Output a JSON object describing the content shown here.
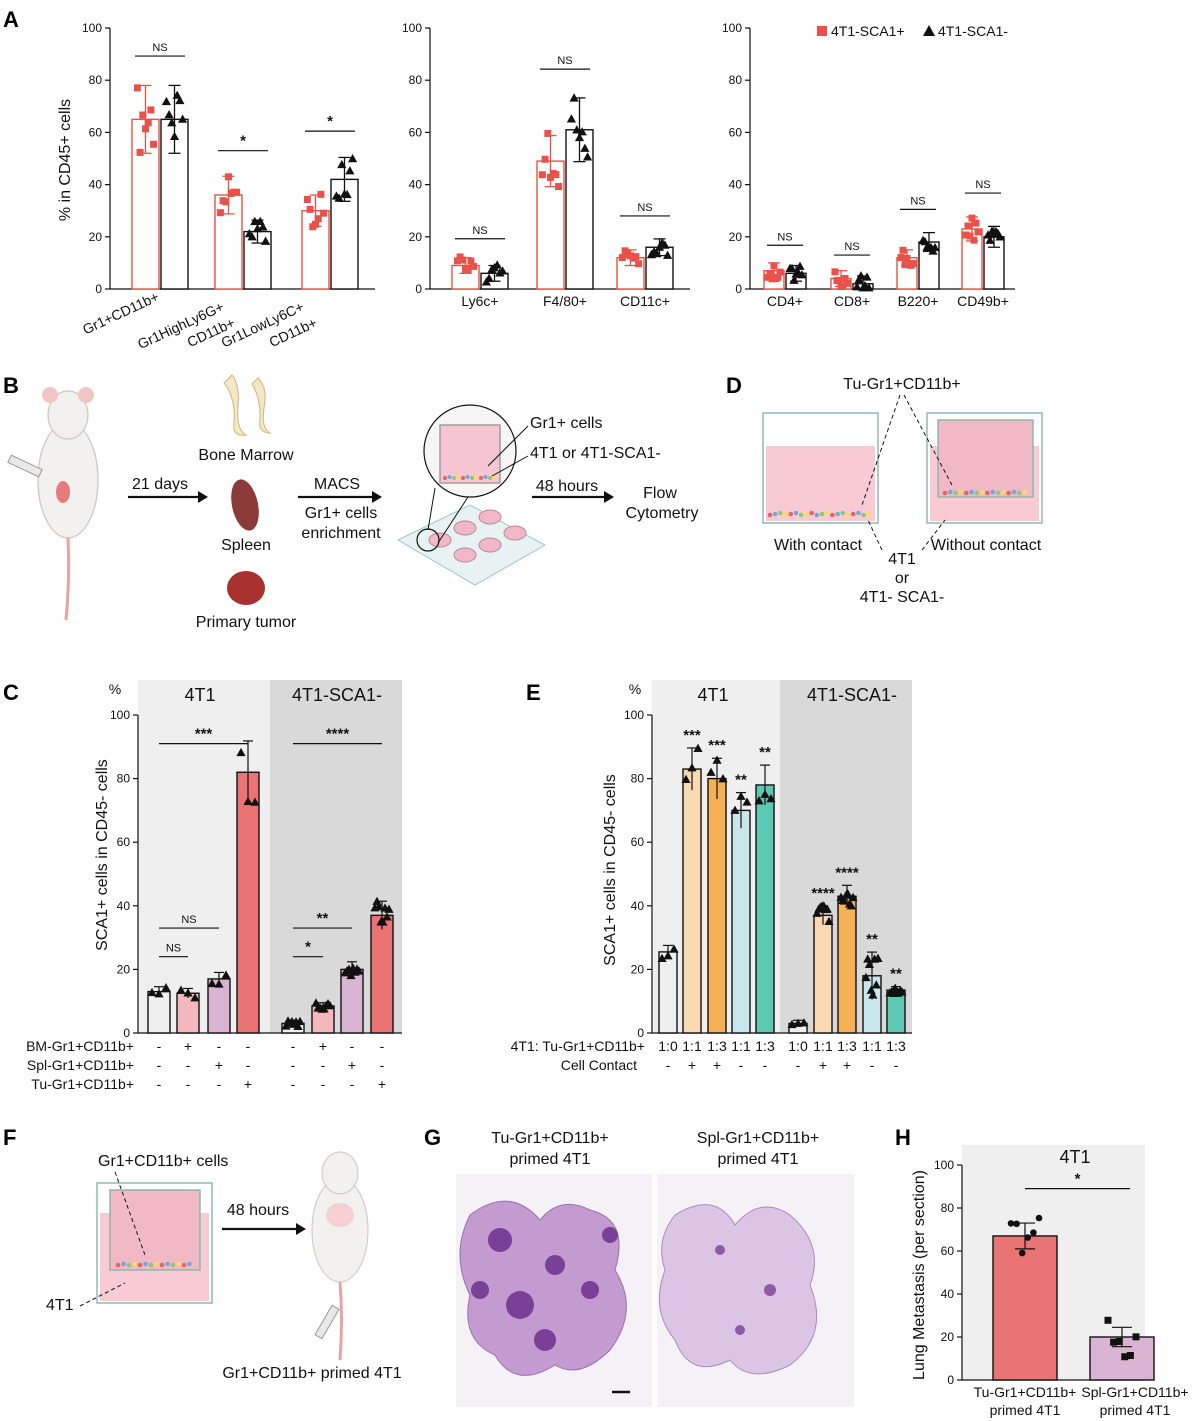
{
  "panel_labels": {
    "a": "A",
    "b": "B",
    "c": "C",
    "d": "D",
    "e": "E",
    "f": "F",
    "g": "G",
    "h": "H"
  },
  "colors": {
    "red": "#e8524a",
    "black": "#111111",
    "peach": "#f8d9b2",
    "orange": "#f4b156",
    "lightblue": "#c8e6ec",
    "teal": "#5cc8b2",
    "mauve": "#d9b5d3",
    "pink": "#f2b8be",
    "salmon": "#ea7474",
    "gray_bg": "#efefef",
    "dark_bg": "#d9d9d9"
  },
  "panelA": {
    "ylabel": "% in CD45+ cells",
    "legend": [
      "4T1-SCA1+",
      "4T1-SCA1-"
    ],
    "chart_data": [
      {
        "type": "bar",
        "ylim": [
          0,
          100
        ],
        "yticks": [
          0,
          20,
          40,
          60,
          80,
          100
        ],
        "categories": [
          "Gr1+CD11b+",
          "Gr1HighLy6G+ CD11b+",
          "Gr1LowLy6C+ CD11b+"
        ],
        "series": [
          {
            "name": "4T1-SCA1+",
            "values": [
              65,
              36,
              30
            ]
          },
          {
            "name": "4T1-SCA1-",
            "values": [
              65,
              22,
              42
            ]
          }
        ],
        "significance": [
          "NS",
          "*",
          "*"
        ]
      },
      {
        "type": "bar",
        "ylim": [
          0,
          100
        ],
        "yticks": [
          0,
          20,
          40,
          60,
          80,
          100
        ],
        "categories": [
          "Ly6c+",
          "F4/80+",
          "CD11c+"
        ],
        "series": [
          {
            "name": "4T1-SCA1+",
            "values": [
              9,
              49,
              12
            ]
          },
          {
            "name": "4T1-SCA1-",
            "values": [
              6,
              61,
              16
            ]
          }
        ],
        "significance": [
          "NS",
          "NS",
          "NS"
        ]
      },
      {
        "type": "bar",
        "ylim": [
          0,
          100
        ],
        "yticks": [
          0,
          20,
          40,
          60,
          80,
          100
        ],
        "categories": [
          "CD4+",
          "CD8+",
          "B220+",
          "CD49b+"
        ],
        "series": [
          {
            "name": "4T1-SCA1+",
            "values": [
              7,
              4,
              12,
              23
            ]
          },
          {
            "name": "4T1-SCA1-",
            "values": [
              6,
              2,
              18,
              20
            ]
          }
        ],
        "significance": [
          "NS",
          "NS",
          "NS",
          "NS"
        ]
      }
    ]
  },
  "panelB": {
    "days": "21 days",
    "bone_marrow": "Bone Marrow",
    "spleen": "Spleen",
    "primary_tumor": "Primary tumor",
    "macs": "MACS",
    "enrich1": "Gr1+ cells",
    "enrich2": "enrichment",
    "gr1_cells": "Gr1+ cells",
    "tumor_cells": "4T1 or 4T1-SCA1-",
    "hours": "48 hours",
    "flow1": "Flow",
    "flow2": "Cytometry"
  },
  "panelD": {
    "top_label": "Tu-Gr1+CD11b+",
    "with_contact": "With contact",
    "without_contact": "Without contact",
    "bottom1": "4T1",
    "bottom2": "or",
    "bottom3": "4T1- SCA1-"
  },
  "panelC": {
    "percent": "%",
    "group1": "4T1",
    "group2": "4T1-SCA1-",
    "ylabel": "SCA1+ cells in CD45- cells",
    "rows": [
      "BM-Gr1+CD11b+",
      "Spl-Gr1+CD11b+",
      "Tu-Gr1+CD11b+"
    ],
    "signs": [
      [
        "-",
        "+",
        "-",
        "-",
        "-",
        "+",
        "-",
        "-"
      ],
      [
        "-",
        "-",
        "+",
        "-",
        "-",
        "-",
        "+",
        "-"
      ],
      [
        "-",
        "-",
        "-",
        "+",
        "-",
        "-",
        "-",
        "+"
      ]
    ],
    "chart_data": {
      "type": "bar",
      "ylim": [
        0,
        100
      ],
      "yticks": [
        0,
        20,
        40,
        60,
        80,
        100
      ],
      "values": [
        13,
        12.5,
        17,
        82,
        3,
        8.5,
        20,
        37
      ],
      "significance": [
        {
          "label": "***"
        },
        {
          "label": "****"
        },
        {
          "label": "NS"
        },
        {
          "label": "NS"
        },
        {
          "label": "**"
        },
        {
          "label": "*"
        }
      ]
    }
  },
  "panelE": {
    "percent": "%",
    "group1": "4T1",
    "group2": "4T1-SCA1-",
    "ylabel": "SCA1+ cells in CD45- cells",
    "row1_label": "4T1: Tu-Gr1+CD11b+",
    "row2_label": "Cell Contact",
    "ratios": [
      "1:0",
      "1:1",
      "1:3",
      "1:1",
      "1:3",
      "1:0",
      "1:1",
      "1:3",
      "1:1",
      "1:3"
    ],
    "contact": [
      "-",
      "+",
      "+",
      "-",
      "-",
      "-",
      "+",
      "+",
      "-",
      "-"
    ],
    "chart_data": {
      "type": "bar",
      "ylim": [
        0,
        100
      ],
      "yticks": [
        0,
        20,
        40,
        60,
        80,
        100
      ],
      "values": [
        25.5,
        83,
        80,
        70,
        78,
        3,
        37,
        43,
        18,
        13.5
      ],
      "significance": [
        "",
        "***",
        "***",
        "**",
        "**",
        "",
        "****",
        "****",
        "**",
        "**"
      ]
    }
  },
  "panelF": {
    "cells_label": "Gr1+CD11b+ cells",
    "hours": "48 hours",
    "tumor": "4T1",
    "primed": "Gr1+CD11b+ primed 4T1"
  },
  "panelG": {
    "title_left_1": "Tu-Gr1+CD11b+",
    "title_left_2": "primed 4T1",
    "title_right_1": "Spl-Gr1+CD11b+",
    "title_right_2": "primed 4T1"
  },
  "panelH": {
    "title": "4T1",
    "ylabel": "Lung Metastasis (per section)",
    "sig": "*",
    "cat1_1": "Tu-Gr1+CD11b+",
    "cat1_2": "primed 4T1",
    "cat2_1": "Spl-Gr1+CD11b+",
    "cat2_2": "primed 4T1",
    "chart_data": {
      "type": "bar",
      "ylim": [
        0,
        100
      ],
      "yticks": [
        0,
        20,
        40,
        60,
        80,
        100
      ],
      "categories": [
        "Tu-Gr1+CD11b+ primed 4T1",
        "Spl-Gr1+CD11b+ primed 4T1"
      ],
      "values": [
        67,
        20
      ]
    }
  }
}
